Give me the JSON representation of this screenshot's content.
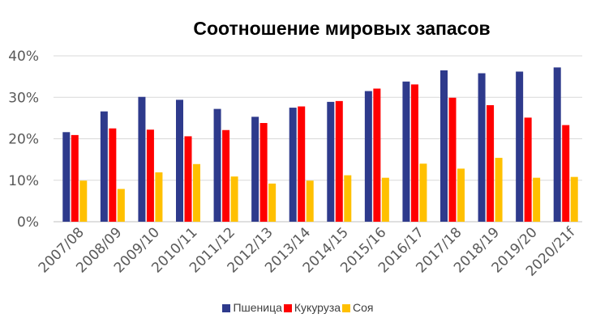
{
  "chart_data": {
    "type": "bar",
    "title": "Соотношение мировых запасов",
    "xlabel": "",
    "ylabel": "",
    "ylim": [
      0,
      0.4
    ],
    "y_ticks": [
      {
        "value": 0,
        "label": "0%"
      },
      {
        "value": 0.1,
        "label": "10%"
      },
      {
        "value": 0.2,
        "label": "20%"
      },
      {
        "value": 0.3,
        "label": "30%"
      },
      {
        "value": 0.4,
        "label": "40%"
      }
    ],
    "grid": true,
    "legend_position": "bottom",
    "categories": [
      "2007/08",
      "2008/09",
      "2009/10",
      "2010/11",
      "2011/12",
      "2012/13",
      "2013/14",
      "2014/15",
      "2015/16",
      "2016/17",
      "2017/18",
      "2018/19",
      "2019/20",
      "2020/21f"
    ],
    "series": [
      {
        "name": "Пшеница",
        "color": "#2E3A8C",
        "values": [
          0.216,
          0.266,
          0.301,
          0.294,
          0.272,
          0.253,
          0.275,
          0.289,
          0.315,
          0.338,
          0.365,
          0.358,
          0.362,
          0.372
        ]
      },
      {
        "name": "Кукуруза",
        "color": "#FF0000",
        "values": [
          0.209,
          0.225,
          0.222,
          0.206,
          0.221,
          0.238,
          0.278,
          0.291,
          0.321,
          0.331,
          0.299,
          0.281,
          0.251,
          0.233
        ]
      },
      {
        "name": "Соя",
        "color": "#FFC000",
        "values": [
          0.099,
          0.079,
          0.119,
          0.139,
          0.109,
          0.092,
          0.099,
          0.112,
          0.106,
          0.14,
          0.128,
          0.154,
          0.106,
          0.108
        ]
      }
    ]
  }
}
